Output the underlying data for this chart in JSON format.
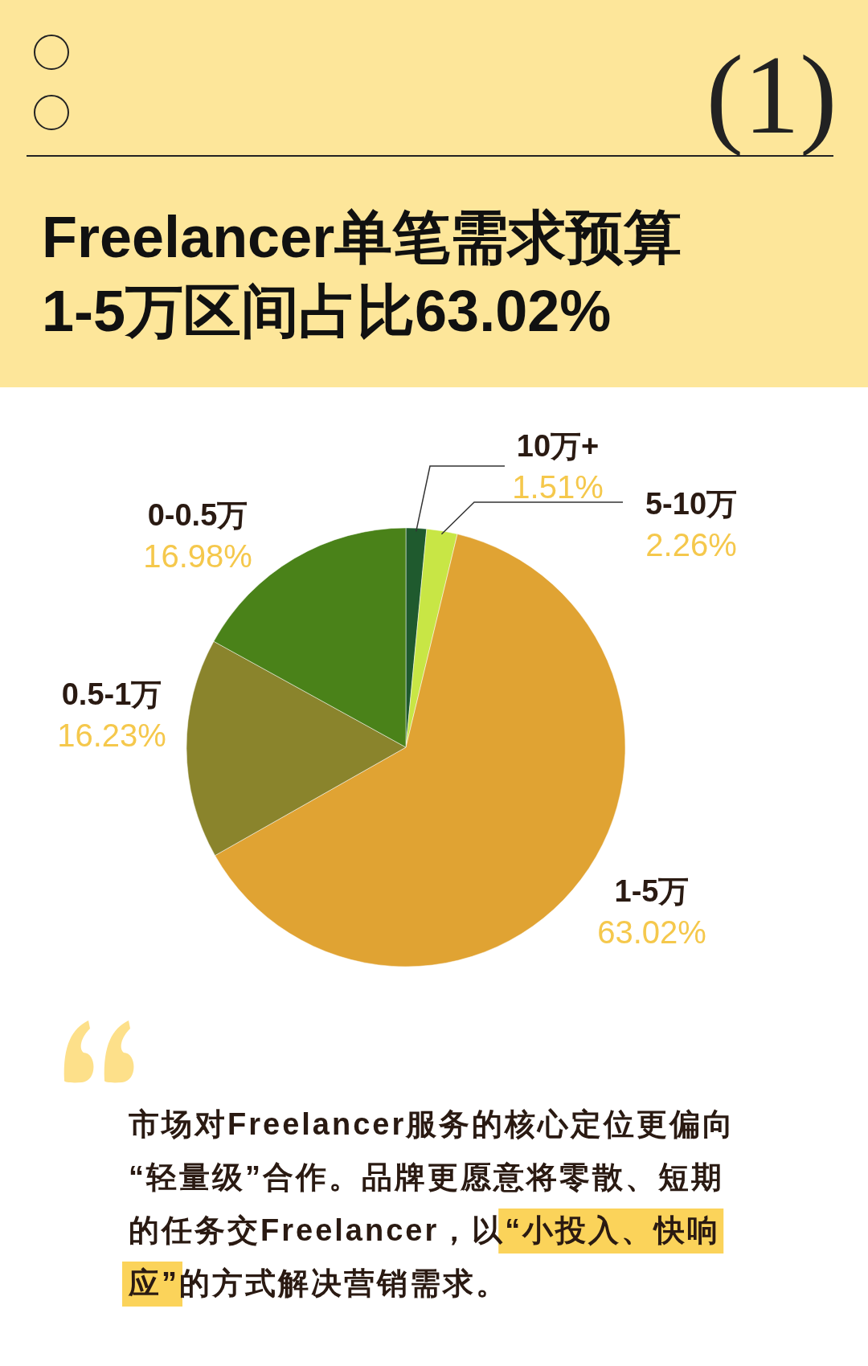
{
  "chart_data": {
    "type": "pie",
    "title": "Freelancer单笔需求预算\n1-5万区间占比63.02%",
    "categories": [
      "10万+",
      "5-10万",
      "1-5万",
      "0.5-1万",
      "0-0.5万"
    ],
    "values": [
      1.51,
      2.26,
      63.02,
      16.23,
      16.98
    ],
    "colors": [
      "#1f5a2e",
      "#c8e645",
      "#e0a333",
      "#8a842c",
      "#4a8219"
    ],
    "value_labels": [
      "1.51%",
      "2.26%",
      "63.02%",
      "16.23%",
      "16.98%"
    ],
    "annotations": [
      "(1)",
      "市场对Freelancer服务的核心定位更偏向",
      "“轻量级”合作。品牌更愿意将零散、短期",
      "的任务交Freelancer，以“小投入、快响",
      "应”的方式解决营销需求。"
    ]
  }
}
